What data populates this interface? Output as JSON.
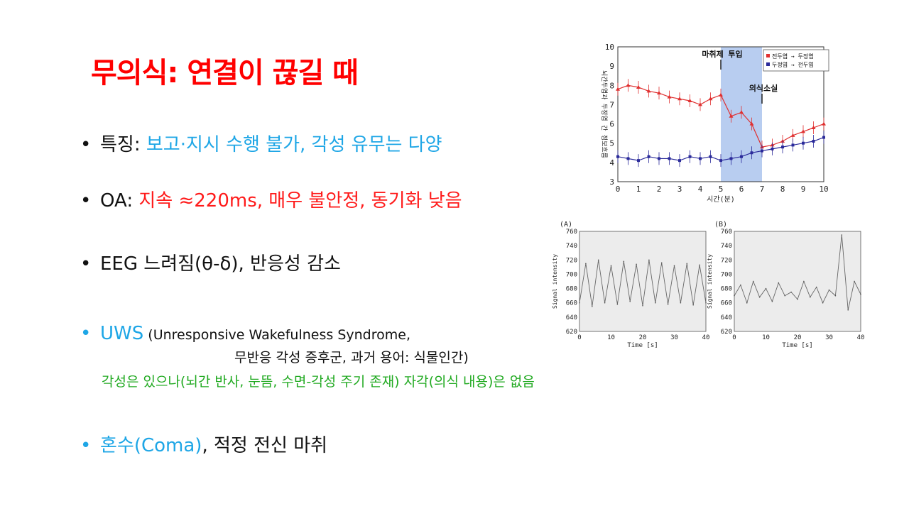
{
  "slide": {
    "title": "무의식: 연결이 끊길 때",
    "bullets": [
      {
        "dot": "•",
        "label": "특징: ",
        "text": "보고·지시 수행 불가, 각성 유무는 다양"
      },
      {
        "dot": "•",
        "label": "OA: ",
        "text": "지속 ≈220ms, 매우 불안정, 동기화 낮음"
      },
      {
        "dot": "•",
        "text": "EEG 느려짐(θ-δ), 반응성 감소"
      },
      {
        "dot": "•",
        "label": "UWS",
        "paren": " (Unresponsive Wakefulness Syndrome,",
        "paren2": "무반응 각성 증후군, 과거 용어: 식물인간)",
        "note": "각성은 있으나(뇌간 반사, 눈뜸, 수면-각성 주기 존재)  자각(의식 내용)은 없음"
      },
      {
        "dot": "•",
        "label": "혼수(Coma)",
        "text": ", 적정 전신 마취"
      }
    ]
  },
  "colors": {
    "title": "#ff0000",
    "label_blue": "#1ea6e6",
    "text_red": "#ff1a1a",
    "note_green": "#22aa22",
    "red_series": "#e03030",
    "blue_series": "#2a2a9a",
    "band": "#b8cdf0"
  },
  "chart_data": [
    {
      "type": "line",
      "title": "",
      "xlabel": "시간(분)",
      "ylabel": "뇌간두엽과 두정엽 간 정보흐름",
      "xlim": [
        0,
        10
      ],
      "ylim": [
        3,
        10
      ],
      "xticks": [
        "0",
        "1",
        "2",
        "3",
        "4",
        "5",
        "6",
        "7",
        "8",
        "9",
        "10"
      ],
      "yticks": [
        "3",
        "4",
        "5",
        "6",
        "7",
        "8",
        "9",
        "10"
      ],
      "annotations": [
        "마취제 투입",
        "의식소실"
      ],
      "legend": [
        "전두엽 → 두정엽",
        "두정엽 → 전두엽"
      ],
      "legend_position": "top-right",
      "series": [
        {
          "name": "전두엽 → 두정엽",
          "x": [
            0,
            0.5,
            1,
            1.5,
            2,
            2.5,
            3,
            3.5,
            4,
            4.5,
            5,
            5.5,
            6,
            6.5,
            7,
            7.5,
            8,
            8.5,
            9,
            9.5,
            10
          ],
          "values": [
            7.8,
            8.0,
            7.9,
            7.7,
            7.6,
            7.4,
            7.3,
            7.2,
            7.0,
            7.3,
            7.5,
            6.4,
            6.6,
            6.0,
            4.8,
            4.9,
            5.1,
            5.4,
            5.6,
            5.8,
            6.0
          ]
        },
        {
          "name": "두정엽 → 전두엽",
          "x": [
            0,
            0.5,
            1,
            1.5,
            2,
            2.5,
            3,
            3.5,
            4,
            4.5,
            5,
            5.5,
            6,
            6.5,
            7,
            7.5,
            8,
            8.5,
            9,
            9.5,
            10
          ],
          "values": [
            4.3,
            4.2,
            4.1,
            4.3,
            4.2,
            4.2,
            4.1,
            4.3,
            4.2,
            4.3,
            4.1,
            4.2,
            4.3,
            4.5,
            4.6,
            4.7,
            4.8,
            4.9,
            5.0,
            5.1,
            5.3
          ]
        }
      ]
    },
    {
      "type": "line",
      "panel": "(A)",
      "xlabel": "Time [s]",
      "ylabel": "Signal intensity",
      "xlim": [
        0,
        40
      ],
      "ylim": [
        620,
        760
      ],
      "xticks": [
        "0",
        "10",
        "20",
        "30",
        "40"
      ],
      "yticks": [
        "620",
        "640",
        "660",
        "680",
        "700",
        "720",
        "740",
        "760"
      ],
      "series": [
        {
          "x": [
            0,
            2,
            4,
            6,
            8,
            10,
            12,
            14,
            16,
            18,
            20,
            22,
            24,
            26,
            28,
            30,
            32,
            34,
            36,
            38,
            40
          ],
          "values": [
            660,
            715,
            655,
            720,
            660,
            712,
            658,
            718,
            662,
            714,
            656,
            720,
            660,
            716,
            658,
            712,
            660,
            715,
            657,
            713,
            660
          ]
        }
      ]
    },
    {
      "type": "line",
      "panel": "(B)",
      "xlabel": "Time [s]",
      "ylabel": "Signal intensity",
      "xlim": [
        0,
        40
      ],
      "ylim": [
        620,
        760
      ],
      "xticks": [
        "0",
        "10",
        "20",
        "30",
        "40"
      ],
      "yticks": [
        "620",
        "640",
        "660",
        "680",
        "700",
        "720",
        "740",
        "760"
      ],
      "series": [
        {
          "x": [
            0,
            2,
            4,
            6,
            8,
            10,
            12,
            14,
            16,
            18,
            20,
            22,
            24,
            26,
            28,
            30,
            32,
            34,
            36,
            38,
            40
          ],
          "values": [
            670,
            685,
            660,
            690,
            668,
            680,
            662,
            688,
            670,
            675,
            665,
            690,
            668,
            682,
            660,
            678,
            670,
            755,
            650,
            690,
            672
          ]
        }
      ]
    }
  ]
}
